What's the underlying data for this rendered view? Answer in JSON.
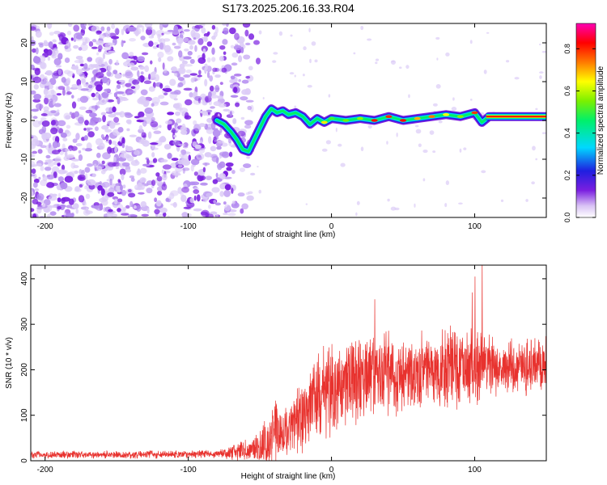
{
  "title": "S173.2025.206.16.33.R04",
  "chart_data": [
    {
      "type": "heatmap",
      "xlabel": "Height of straight line (km)",
      "ylabel": "Frequency (Hz)",
      "xlim": [
        -210,
        150
      ],
      "ylim": [
        -25,
        25
      ],
      "x_ticks": [
        "-200",
        "-100",
        "0",
        "100"
      ],
      "y_ticks": [
        "20",
        "10",
        "0",
        "-10",
        "-20"
      ],
      "colorbar": {
        "label": "Normalized spectral amplitude",
        "range": [
          0,
          0.92
        ],
        "ticks": [
          "0.0",
          "0.2",
          "0.4",
          "0.6",
          "0.8"
        ],
        "colormap": "rainbow (white/violet low → blue → cyan → green → yellow → red → magenta high)"
      },
      "noise_region_x": [
        -210,
        -75
      ],
      "signal_trace": [
        {
          "x": -80,
          "y": 0
        },
        {
          "x": -75,
          "y": -1
        },
        {
          "x": -70,
          "y": -3
        },
        {
          "x": -66,
          "y": -5
        },
        {
          "x": -62,
          "y": -7.5
        },
        {
          "x": -58,
          "y": -8
        },
        {
          "x": -54,
          "y": -5
        },
        {
          "x": -50,
          "y": -2
        },
        {
          "x": -46,
          "y": 1
        },
        {
          "x": -42,
          "y": 3
        },
        {
          "x": -38,
          "y": 2
        },
        {
          "x": -34,
          "y": 2.5
        },
        {
          "x": -30,
          "y": 1.5
        },
        {
          "x": -25,
          "y": 2
        },
        {
          "x": -20,
          "y": 1
        },
        {
          "x": -15,
          "y": -1
        },
        {
          "x": -10,
          "y": 0.5
        },
        {
          "x": -5,
          "y": -0.5
        },
        {
          "x": 0,
          "y": 0.5
        },
        {
          "x": 10,
          "y": 0
        },
        {
          "x": 20,
          "y": 0.5
        },
        {
          "x": 30,
          "y": 0
        },
        {
          "x": 40,
          "y": 1
        },
        {
          "x": 50,
          "y": 0
        },
        {
          "x": 60,
          "y": 0.5
        },
        {
          "x": 70,
          "y": 1
        },
        {
          "x": 80,
          "y": 1.5
        },
        {
          "x": 90,
          "y": 1
        },
        {
          "x": 100,
          "y": 2
        },
        {
          "x": 105,
          "y": -0.5
        },
        {
          "x": 110,
          "y": 1
        },
        {
          "x": 150,
          "y": 1
        }
      ],
      "constant_band_x": [
        108,
        150
      ],
      "constant_band_y": [
        0.5,
        1.5
      ]
    },
    {
      "type": "line",
      "xlabel": "Height of straight line (km)",
      "ylabel": "SNR (10 * v/v)",
      "xlim": [
        -210,
        150
      ],
      "ylim": [
        0,
        430
      ],
      "x_ticks": [
        "-200",
        "-100",
        "0",
        "100"
      ],
      "y_ticks": [
        "400",
        "300",
        "200",
        "100",
        "0"
      ],
      "series": [
        {
          "color": "#e8322e",
          "envelope": [
            {
              "x": -210,
              "base": 12,
              "amp": 12
            },
            {
              "x": -80,
              "base": 14,
              "amp": 14
            },
            {
              "x": -68,
              "base": 18,
              "amp": 30
            },
            {
              "x": -52,
              "base": 25,
              "amp": 45
            },
            {
              "x": -45,
              "base": 40,
              "amp": 90
            },
            {
              "x": -40,
              "base": 60,
              "amp": 110
            },
            {
              "x": -30,
              "base": 50,
              "amp": 80
            },
            {
              "x": -25,
              "base": 80,
              "amp": 120
            },
            {
              "x": -10,
              "base": 130,
              "amp": 150
            },
            {
              "x": 10,
              "base": 160,
              "amp": 150
            },
            {
              "x": 30,
              "base": 180,
              "amp": 140
            },
            {
              "x": 60,
              "base": 190,
              "amp": 130
            },
            {
              "x": 95,
              "base": 200,
              "amp": 130
            },
            {
              "x": 120,
              "base": 200,
              "amp": 100
            },
            {
              "x": 150,
              "base": 210,
              "amp": 85
            }
          ],
          "spikes": [
            {
              "x": 98,
              "y": 370
            },
            {
              "x": 105,
              "y": 440
            },
            {
              "x": 30,
              "y": 355
            },
            {
              "x": 100,
              "y": 405
            }
          ]
        }
      ]
    }
  ]
}
